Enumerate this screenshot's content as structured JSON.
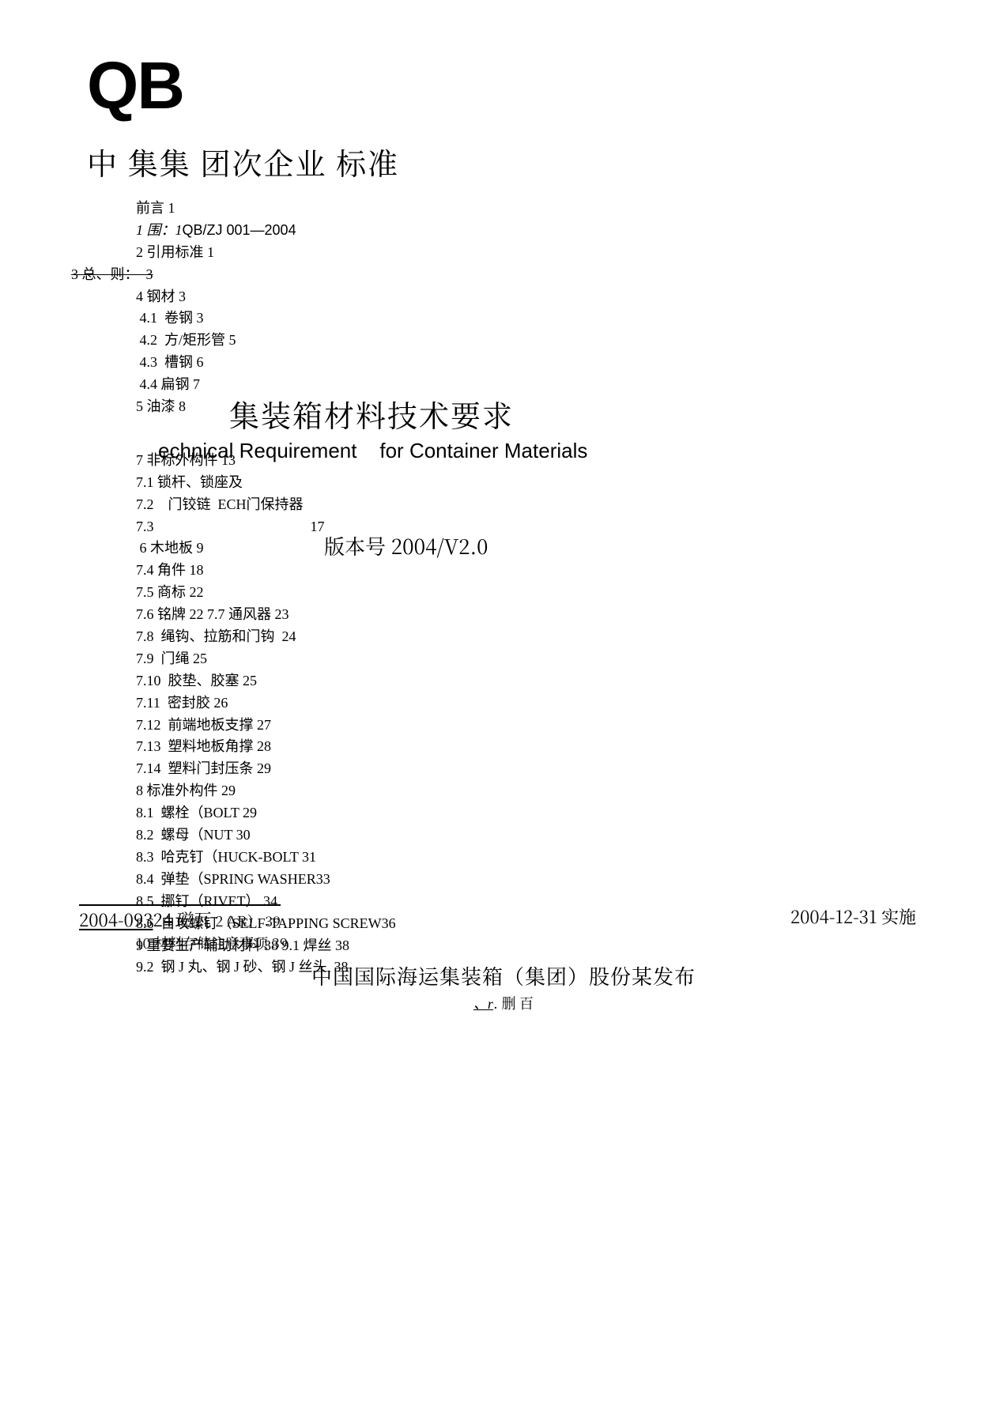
{
  "qb": "QB",
  "title_cn": "中  集集  团次企业  标准",
  "float": {
    "title_cn": "集装箱材料技术要求",
    "title_en_left": "echnical Requirement",
    "title_en_right": "for Container Materials",
    "version": "版本号 2004/V2.0"
  },
  "toc": [
    {
      "t": "前言 1"
    },
    {
      "t": "1 围：1QB/ZJ 001—2004",
      "mix": true,
      "italic_prefix": true
    },
    {
      "t": "2 引用标准 1"
    },
    {
      "t": "3 总、则：  3",
      "strike": true
    },
    {
      "t": "4 钢材 3"
    },
    {
      "t": "4.1  卷钢 3",
      "indent": 1
    },
    {
      "t": "4.2  方/矩形管 5",
      "indent": 1
    },
    {
      "t": "4.3  槽钢 6",
      "indent": 1
    },
    {
      "t": "4.4 扁钢 7",
      "indent": 1
    },
    {
      "t": "5 油漆 8"
    },
    {
      "t": "",
      "gap": "top"
    },
    {
      "t": "7 非标外构件 13"
    },
    {
      "t": "7.1 锁杆、锁座及"
    },
    {
      "t": "7.2    门铰链  ECH门保持器"
    },
    {
      "t": "7.3                                            17"
    },
    {
      "t": " 6 木地板 9"
    },
    {
      "t": "7.4 角件 18"
    },
    {
      "t": "7.5 商标 22"
    },
    {
      "t": "7.6 铭牌 22 7.7 通风器 23"
    },
    {
      "t": "7.8  绳钩、拉筋和门钩  24"
    },
    {
      "t": "7.9  门绳 25"
    },
    {
      "t": "7.10  胶垫、胶塞 25"
    },
    {
      "t": "7.11  密封胶 26"
    },
    {
      "t": "7.12  前端地板支撑 27"
    },
    {
      "t": "7.13  塑料地板角撑 28"
    },
    {
      "t": "7.14  塑料门封压条 29"
    },
    {
      "t": "8 标准外构件 29"
    },
    {
      "t": "8.1  螺栓（BOLT 29"
    },
    {
      "t": "8.2  螺母（NUT 30"
    },
    {
      "t": "8.3  哈克钉（HUCK-BOLT 31"
    },
    {
      "t": "8.4  弹垫（SPRING WASHER33"
    },
    {
      "t": "8.5  挪钉（RIVET） 34"
    },
    {
      "t": "8.6  自攻螺钉（SELF-TAPPING SCREW36"
    },
    {
      "t": "9 重要生产辅助材料 38 9.1 焊丝 38"
    },
    {
      "t": "9.2  钢 J 丸、钢 J 砂、钢 J 丝头  38"
    }
  ],
  "bottom_left_a": "2004-093",
  "bottom_left_b": "24 磁瓦",
  "bottom_left_c": " 2 AR） 39",
  "bottom_right": "2004-12-31 实施",
  "post_line": "10 材料存储注意事项 39",
  "issuer": "中国国际海运集装箱（集团）股份某发布",
  "footer_a": "、r",
  "footer_b": ". 删 百"
}
